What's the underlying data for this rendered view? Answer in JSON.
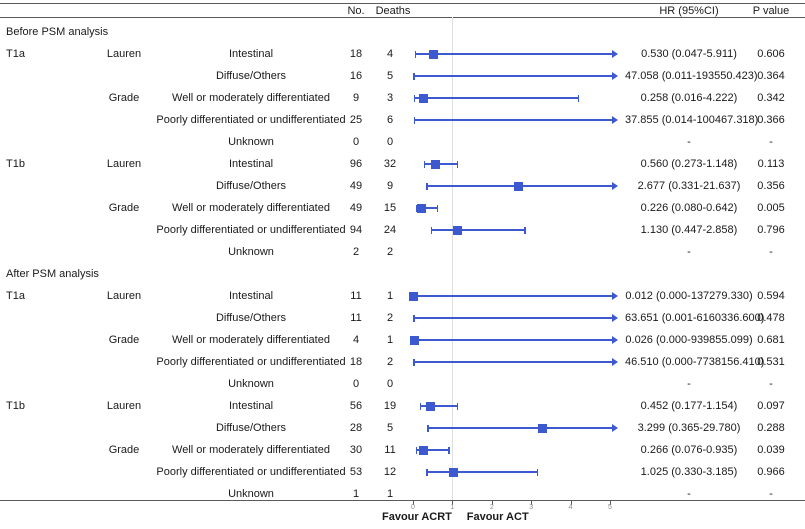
{
  "header": {
    "no": "No.",
    "deaths": "Deaths",
    "hr": "HR (95%CI)",
    "p": "P value"
  },
  "axis": {
    "left_label": "Favour ACRT",
    "right_label": "Favour ACT",
    "ref_value": 1,
    "tick_values": [
      0,
      1,
      2,
      3,
      4,
      5
    ]
  },
  "colors": {
    "accent_blue": "#3d59cf",
    "ref_line": "#dedede",
    "rule": "#5a5a5a"
  },
  "chart_data": {
    "type": "forest",
    "xlim": [
      0,
      5.15
    ],
    "xticks": [
      0,
      1,
      2,
      3,
      4,
      5
    ],
    "legend_left": "Favour ACRT",
    "legend_right": "Favour ACT",
    "rows": [
      {
        "kind": "section",
        "label": "Before PSM analysis"
      },
      {
        "kind": "data",
        "t": "T1a",
        "group": "Lauren",
        "subgroup": "Intestinal",
        "no": "18",
        "deaths": "4",
        "hr": 0.53,
        "lo": 0.047,
        "hi": 5.911,
        "hr_text": "0.530 (0.047-5.911)",
        "p": "0.606"
      },
      {
        "kind": "data",
        "t": "",
        "group": "",
        "subgroup": "Diffuse/Others",
        "no": "16",
        "deaths": "5",
        "hr": 47.058,
        "lo": 0.011,
        "hi": 193550.423,
        "hr_text": "47.058 (0.011-193550.423)",
        "p": "0.364"
      },
      {
        "kind": "data",
        "t": "",
        "group": "Grade",
        "subgroup": "Well or moderately differentiated",
        "no": "9",
        "deaths": "3",
        "hr": 0.258,
        "lo": 0.016,
        "hi": 4.222,
        "hr_text": "0.258 (0.016-4.222)",
        "p": "0.342"
      },
      {
        "kind": "data",
        "t": "",
        "group": "",
        "subgroup": "Poorly differentiated or undifferentiated",
        "no": "25",
        "deaths": "6",
        "hr": 37.855,
        "lo": 0.014,
        "hi": 100467.318,
        "hr_text": "37.855 (0.014-100467.318)",
        "p": "0.366"
      },
      {
        "kind": "data",
        "t": "",
        "group": "",
        "subgroup": "Unknown",
        "no": "0",
        "deaths": "0",
        "hr": null,
        "lo": null,
        "hi": null,
        "hr_text": "-",
        "p": "-"
      },
      {
        "kind": "data",
        "t": "T1b",
        "group": "Lauren",
        "subgroup": "Intestinal",
        "no": "96",
        "deaths": "32",
        "hr": 0.56,
        "lo": 0.273,
        "hi": 1.148,
        "hr_text": "0.560 (0.273-1.148)",
        "p": "0.113"
      },
      {
        "kind": "data",
        "t": "",
        "group": "",
        "subgroup": "Diffuse/Others",
        "no": "49",
        "deaths": "9",
        "hr": 2.677,
        "lo": 0.331,
        "hi": 21.637,
        "hr_text": "2.677 (0.331-21.637)",
        "p": "0.356"
      },
      {
        "kind": "data",
        "t": "",
        "group": "Grade",
        "subgroup": "Well or moderately differentiated",
        "no": "49",
        "deaths": "15",
        "hr": 0.226,
        "lo": 0.08,
        "hi": 0.642,
        "hr_text": "0.226 (0.080-0.642)",
        "p": "0.005"
      },
      {
        "kind": "data",
        "t": "",
        "group": "",
        "subgroup": "Poorly differentiated or undifferentiated",
        "no": "94",
        "deaths": "24",
        "hr": 1.13,
        "lo": 0.447,
        "hi": 2.858,
        "hr_text": "1.130 (0.447-2.858)",
        "p": "0.796"
      },
      {
        "kind": "data",
        "t": "",
        "group": "",
        "subgroup": "Unknown",
        "no": "2",
        "deaths": "2",
        "hr": null,
        "lo": null,
        "hi": null,
        "hr_text": "-",
        "p": "-"
      },
      {
        "kind": "section",
        "label": "After PSM analysis"
      },
      {
        "kind": "data",
        "t": "T1a",
        "group": "Lauren",
        "subgroup": "Intestinal",
        "no": "11",
        "deaths": "1",
        "hr": 0.012,
        "lo": 0.0,
        "hi": 137279.33,
        "hr_text": "0.012 (0.000-137279.330)",
        "p": "0.594"
      },
      {
        "kind": "data",
        "t": "",
        "group": "",
        "subgroup": "Diffuse/Others",
        "no": "11",
        "deaths": "2",
        "hr": 63.651,
        "lo": 0.001,
        "hi": 6160336.6,
        "hr_text": "63.651 (0.001-6160336.600)",
        "p": "0.478"
      },
      {
        "kind": "data",
        "t": "",
        "group": "Grade",
        "subgroup": "Well or moderately differentiated",
        "no": "4",
        "deaths": "1",
        "hr": 0.026,
        "lo": 0.0,
        "hi": 939855.099,
        "hr_text": "0.026 (0.000-939855.099)",
        "p": "0.681"
      },
      {
        "kind": "data",
        "t": "",
        "group": "",
        "subgroup": "Poorly differentiated or undifferentiated",
        "no": "18",
        "deaths": "2",
        "hr": 46.51,
        "lo": 0.0,
        "hi": 7738156.41,
        "hr_text": "46.510 (0.000-7738156.410)",
        "p": "0.531"
      },
      {
        "kind": "data",
        "t": "",
        "group": "",
        "subgroup": "Unknown",
        "no": "0",
        "deaths": "0",
        "hr": null,
        "lo": null,
        "hi": null,
        "hr_text": "-",
        "p": "-"
      },
      {
        "kind": "data",
        "t": "T1b",
        "group": "Lauren",
        "subgroup": "Intestinal",
        "no": "56",
        "deaths": "19",
        "hr": 0.452,
        "lo": 0.177,
        "hi": 1.154,
        "hr_text": "0.452 (0.177-1.154)",
        "p": "0.097"
      },
      {
        "kind": "data",
        "t": "",
        "group": "",
        "subgroup": "Diffuse/Others",
        "no": "28",
        "deaths": "5",
        "hr": 3.299,
        "lo": 0.365,
        "hi": 29.78,
        "hr_text": "3.299 (0.365-29.780)",
        "p": "0.288"
      },
      {
        "kind": "data",
        "t": "",
        "group": "Grade",
        "subgroup": "Well or moderately differentiated",
        "no": "30",
        "deaths": "11",
        "hr": 0.266,
        "lo": 0.076,
        "hi": 0.935,
        "hr_text": "0.266 (0.076-0.935)",
        "p": "0.039"
      },
      {
        "kind": "data",
        "t": "",
        "group": "",
        "subgroup": "Poorly differentiated or undifferentiated",
        "no": "53",
        "deaths": "12",
        "hr": 1.025,
        "lo": 0.33,
        "hi": 3.185,
        "hr_text": "1.025 (0.330-3.185)",
        "p": "0.966"
      },
      {
        "kind": "data",
        "t": "",
        "group": "",
        "subgroup": "Unknown",
        "no": "1",
        "deaths": "1",
        "hr": null,
        "lo": null,
        "hi": null,
        "hr_text": "-",
        "p": "-"
      }
    ]
  }
}
